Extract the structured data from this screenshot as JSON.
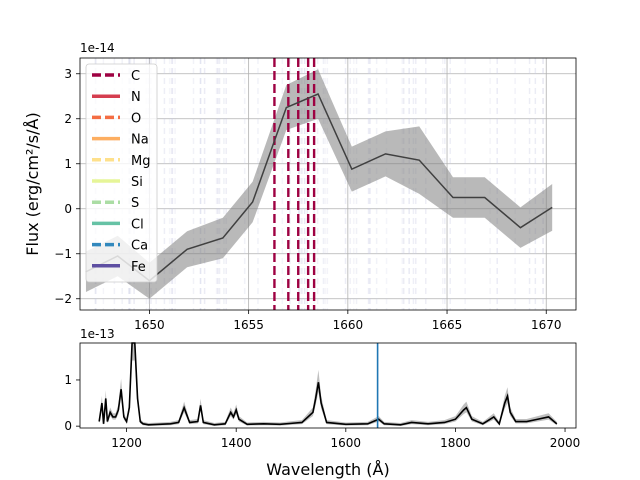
{
  "chart_data": [
    {
      "type": "line",
      "panel": "top",
      "offset_text": "1e-14",
      "ylabel": "Flux (erg/cm²/s/Å)",
      "xlim": [
        1646.5,
        1671.5
      ],
      "ylim": [
        -2.25,
        3.35
      ],
      "grid": true,
      "xticks": [
        1650,
        1655,
        1660,
        1665,
        1670
      ],
      "xtick_labels": [
        "1650",
        "1655",
        "1660",
        "1665",
        "1670"
      ],
      "yticks": [
        -2,
        -1,
        0,
        1,
        2,
        3
      ],
      "ytick_labels": [
        "−2",
        "−1",
        "0",
        "1",
        "2",
        "3"
      ],
      "flux": {
        "x": [
          1646.8,
          1648.4,
          1650.0,
          1651.9,
          1653.7,
          1655.2,
          1656.9,
          1658.5,
          1660.2,
          1661.9,
          1663.6,
          1665.3,
          1666.9,
          1668.7,
          1670.3
        ],
        "y": [
          -1.4,
          -1.05,
          -1.6,
          -0.9,
          -0.65,
          0.15,
          2.25,
          2.55,
          0.88,
          1.22,
          1.08,
          0.25,
          0.25,
          -0.42,
          0.03
        ],
        "error": [
          0.45,
          0.45,
          0.4,
          0.4,
          0.45,
          0.45,
          0.5,
          0.55,
          0.5,
          0.5,
          0.75,
          0.45,
          0.45,
          0.45,
          0.52
        ]
      },
      "line_markers": {
        "x": [
          1656.3,
          1657.0,
          1657.5,
          1658.0,
          1658.3
        ],
        "color": "#9e0142",
        "style": "dashed"
      },
      "legend": {
        "placement": "upper-left",
        "entries": [
          {
            "label": "C",
            "color": "#9e0142",
            "style": "dashed"
          },
          {
            "label": "N",
            "color": "#d53e4f",
            "style": "solid"
          },
          {
            "label": "O",
            "color": "#f46d43",
            "style": "dashed"
          },
          {
            "label": "Na",
            "color": "#fdae61",
            "style": "solid"
          },
          {
            "label": "Mg",
            "color": "#fee08b",
            "style": "dashed"
          },
          {
            "label": "Si",
            "color": "#e6f598",
            "style": "solid"
          },
          {
            "label": "S",
            "color": "#abdda4",
            "style": "dashed"
          },
          {
            "label": "Cl",
            "color": "#66c2a5",
            "style": "solid"
          },
          {
            "label": "Ca",
            "color": "#3288bd",
            "style": "dashed"
          },
          {
            "label": "Fe",
            "color": "#5e4fa2",
            "style": "solid"
          }
        ]
      }
    },
    {
      "type": "line",
      "panel": "bottom",
      "offset_text": "1e-13",
      "xlabel": "Wavelength (Å)",
      "xlim": [
        1115,
        2020
      ],
      "ylim": [
        -0.04,
        1.8
      ],
      "xticks": [
        1200,
        1400,
        1600,
        1800,
        2000
      ],
      "xtick_labels": [
        "1200",
        "1400",
        "1600",
        "1800",
        "2000"
      ],
      "yticks": [
        0,
        1
      ],
      "ytick_labels": [
        "0",
        "1"
      ],
      "marker_x": 1658,
      "marker_color": "#1f77b4",
      "spectrum": {
        "x": [
          1150,
          1155,
          1158,
          1162,
          1165,
          1170,
          1175,
          1180,
          1185,
          1190,
          1195,
          1200,
          1205,
          1210,
          1215,
          1220,
          1225,
          1230,
          1240,
          1260,
          1280,
          1295,
          1305,
          1315,
          1330,
          1335,
          1340,
          1360,
          1380,
          1390,
          1395,
          1400,
          1405,
          1420,
          1450,
          1480,
          1500,
          1520,
          1540,
          1545,
          1550,
          1555,
          1565,
          1600,
          1640,
          1660,
          1670,
          1700,
          1720,
          1750,
          1780,
          1800,
          1815,
          1820,
          1830,
          1850,
          1870,
          1880,
          1890,
          1895,
          1900,
          1910,
          1930,
          1950,
          1970,
          1985
        ],
        "y": [
          0.1,
          0.5,
          0.05,
          0.6,
          0.1,
          0.3,
          0.2,
          0.2,
          0.35,
          0.8,
          0.2,
          0.1,
          0.4,
          1.8,
          1.8,
          0.6,
          0.1,
          0.05,
          0.03,
          0.04,
          0.05,
          0.08,
          0.4,
          0.08,
          0.1,
          0.45,
          0.08,
          0.03,
          0.05,
          0.3,
          0.2,
          0.35,
          0.15,
          0.04,
          0.05,
          0.04,
          0.06,
          0.08,
          0.3,
          0.6,
          0.95,
          0.5,
          0.08,
          0.04,
          0.05,
          0.15,
          0.05,
          0.03,
          0.08,
          0.05,
          0.08,
          0.15,
          0.35,
          0.4,
          0.15,
          0.05,
          0.2,
          0.05,
          0.5,
          0.65,
          0.3,
          0.1,
          0.1,
          0.15,
          0.2,
          0.05
        ]
      }
    }
  ]
}
